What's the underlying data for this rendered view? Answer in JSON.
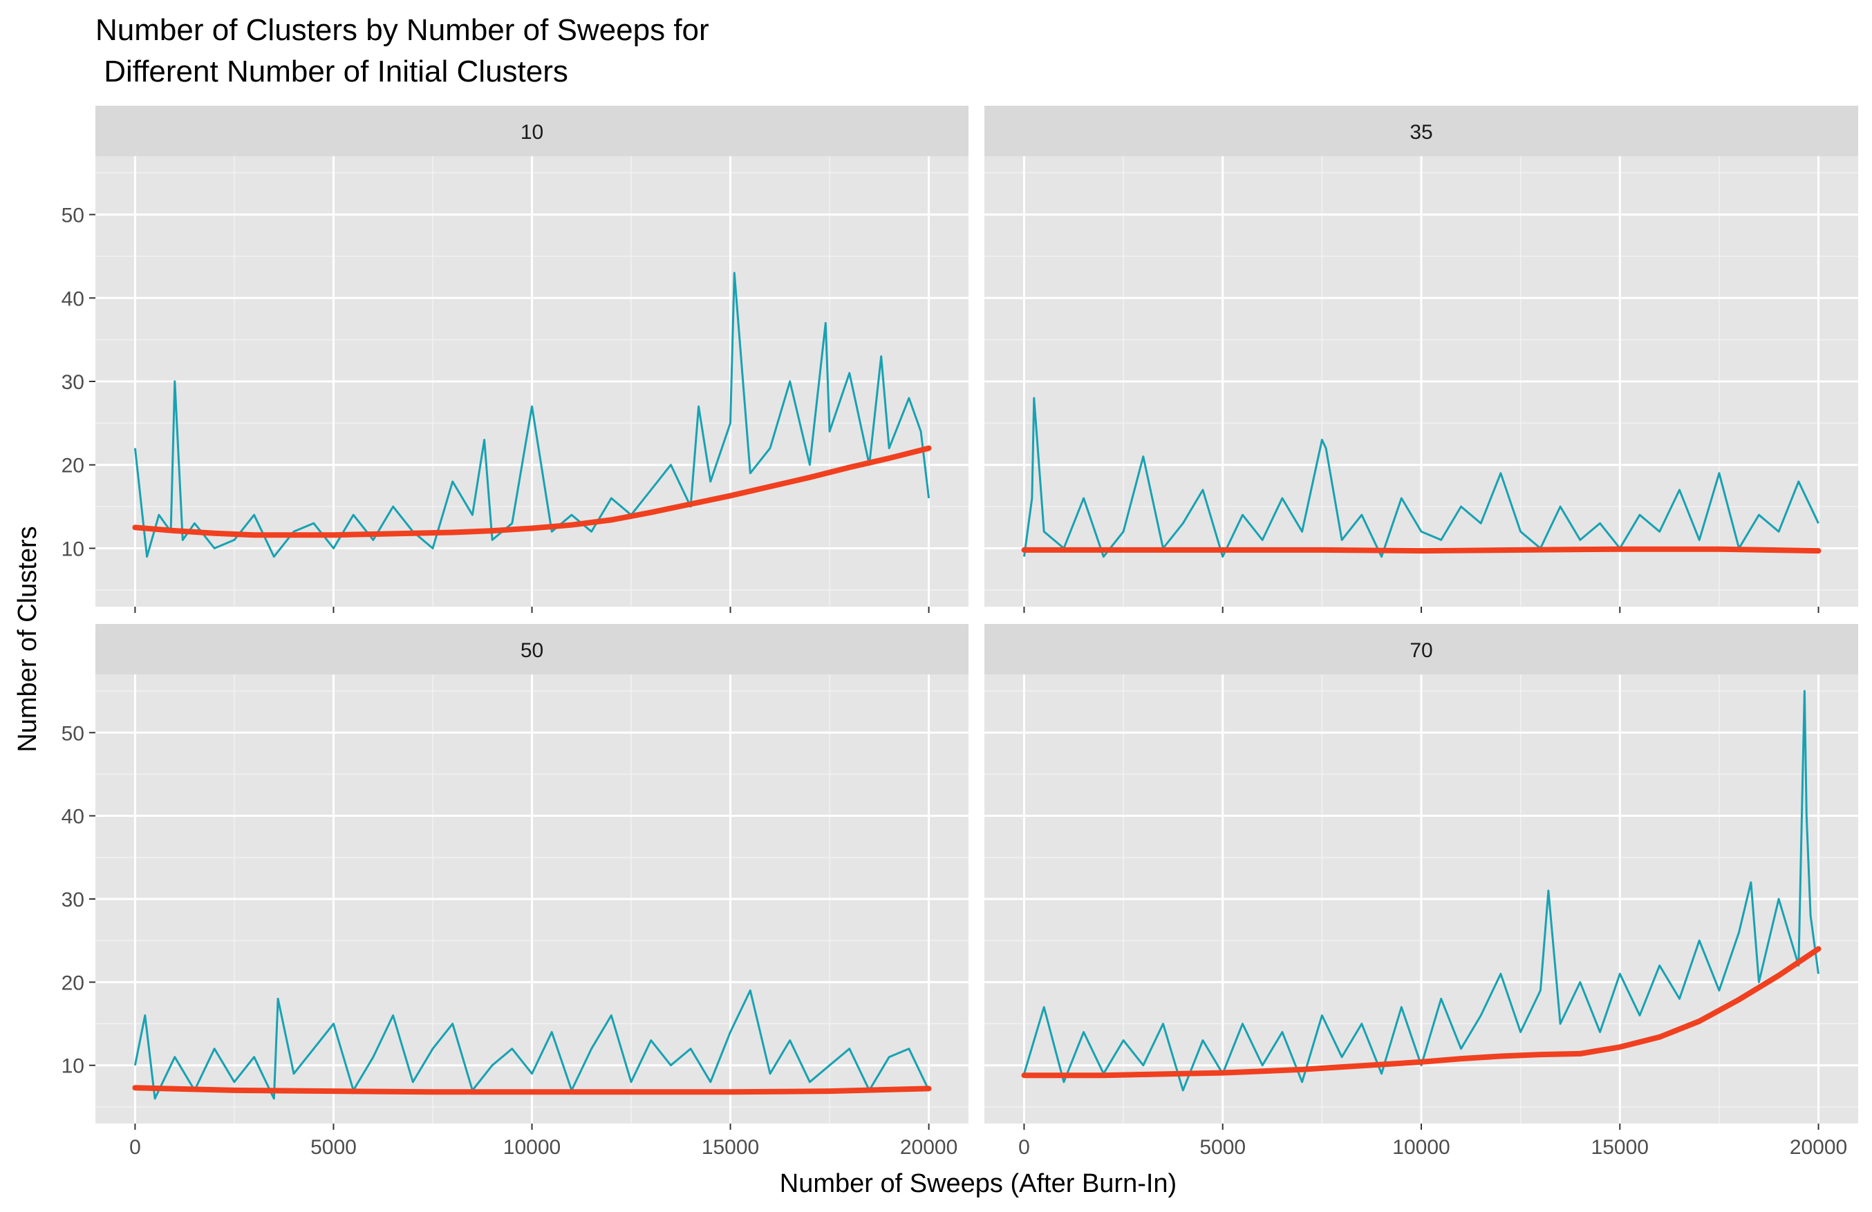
{
  "chart_data": {
    "type": "line",
    "title_line1": "Number of Clusters by Number of Sweeps for",
    "title_line2": " Different Number of Initial Clusters",
    "xlabel": "Number of Sweeps (After Burn-In)",
    "ylabel": "Number of Clusters",
    "xlim": [
      -1000,
      21000
    ],
    "ylim": [
      3,
      57
    ],
    "x_ticks": [
      "0",
      "5000",
      "10000",
      "15000",
      "20000"
    ],
    "y_ticks": [
      "10",
      "20",
      "30",
      "40",
      "50"
    ],
    "grid": true,
    "colors": {
      "trace": "#17a2b2",
      "smooth": "#f0401f",
      "panel_bg": "#e5e5e5",
      "strip_bg": "#d9d9d9",
      "grid": "#ffffff"
    },
    "panels": [
      {
        "strip_label": "10",
        "trace": {
          "x": [
            0,
            300,
            600,
            900,
            1000,
            1200,
            1500,
            2000,
            2500,
            3000,
            3500,
            4000,
            4500,
            5000,
            5500,
            6000,
            6500,
            7000,
            7500,
            8000,
            8500,
            8800,
            9000,
            9500,
            10000,
            10500,
            11000,
            11500,
            12000,
            12500,
            13000,
            13500,
            14000,
            14200,
            14500,
            15000,
            15100,
            15500,
            16000,
            16500,
            17000,
            17400,
            17500,
            18000,
            18500,
            18800,
            19000,
            19500,
            19800,
            20000
          ],
          "y": [
            22,
            9,
            14,
            12,
            30,
            11,
            13,
            10,
            11,
            14,
            9,
            12,
            13,
            10,
            14,
            11,
            15,
            12,
            10,
            18,
            14,
            23,
            11,
            13,
            27,
            12,
            14,
            12,
            16,
            14,
            17,
            20,
            15,
            27,
            18,
            25,
            43,
            19,
            22,
            30,
            20,
            37,
            24,
            31,
            20,
            33,
            22,
            28,
            24,
            16
          ]
        },
        "smooth": {
          "x": [
            0,
            1000,
            2000,
            3000,
            4000,
            5000,
            6000,
            7000,
            8000,
            9000,
            10000,
            11000,
            12000,
            13000,
            14000,
            15000,
            16000,
            17000,
            18000,
            19000,
            20000
          ],
          "y": [
            12.5,
            12.1,
            11.8,
            11.6,
            11.6,
            11.6,
            11.7,
            11.8,
            11.9,
            12.1,
            12.4,
            12.8,
            13.4,
            14.3,
            15.3,
            16.3,
            17.4,
            18.5,
            19.7,
            20.8,
            22.0
          ]
        }
      },
      {
        "strip_label": "35",
        "trace": {
          "x": [
            0,
            200,
            250,
            500,
            1000,
            1500,
            2000,
            2500,
            3000,
            3500,
            4000,
            4500,
            5000,
            5500,
            6000,
            6500,
            7000,
            7500,
            7600,
            8000,
            8500,
            9000,
            9500,
            10000,
            10500,
            11000,
            11500,
            12000,
            12500,
            13000,
            13500,
            14000,
            14500,
            15000,
            15500,
            16000,
            16500,
            17000,
            17500,
            18000,
            18500,
            19000,
            19500,
            20000
          ],
          "y": [
            9,
            16,
            28,
            12,
            10,
            16,
            9,
            12,
            21,
            10,
            13,
            17,
            9,
            14,
            11,
            16,
            12,
            23,
            22,
            11,
            14,
            9,
            16,
            12,
            11,
            15,
            13,
            19,
            12,
            10,
            15,
            11,
            13,
            10,
            14,
            12,
            17,
            11,
            19,
            10,
            14,
            12,
            18,
            13
          ]
        },
        "smooth": {
          "x": [
            0,
            2500,
            5000,
            7500,
            10000,
            12500,
            15000,
            17500,
            20000
          ],
          "y": [
            9.8,
            9.8,
            9.8,
            9.8,
            9.7,
            9.8,
            9.9,
            9.9,
            9.7
          ]
        }
      },
      {
        "strip_label": "50",
        "trace": {
          "x": [
            0,
            250,
            500,
            1000,
            1500,
            2000,
            2500,
            3000,
            3500,
            3600,
            4000,
            4500,
            5000,
            5500,
            6000,
            6500,
            7000,
            7500,
            8000,
            8500,
            9000,
            9500,
            10000,
            10500,
            11000,
            11500,
            12000,
            12500,
            13000,
            13500,
            14000,
            14500,
            15000,
            15500,
            16000,
            16500,
            17000,
            17500,
            18000,
            18500,
            19000,
            19500,
            20000
          ],
          "y": [
            10,
            16,
            6,
            11,
            7,
            12,
            8,
            11,
            6,
            18,
            9,
            12,
            15,
            7,
            11,
            16,
            8,
            12,
            15,
            7,
            10,
            12,
            9,
            14,
            7,
            12,
            16,
            8,
            13,
            10,
            12,
            8,
            14,
            19,
            9,
            13,
            8,
            10,
            12,
            7,
            11,
            12,
            7
          ]
        },
        "smooth": {
          "x": [
            0,
            2500,
            5000,
            7500,
            10000,
            12500,
            15000,
            17500,
            20000
          ],
          "y": [
            7.3,
            7.0,
            6.9,
            6.8,
            6.8,
            6.8,
            6.8,
            6.9,
            7.2
          ]
        }
      },
      {
        "strip_label": "70",
        "trace": {
          "x": [
            0,
            500,
            1000,
            1500,
            2000,
            2500,
            3000,
            3500,
            4000,
            4500,
            5000,
            5500,
            6000,
            6500,
            7000,
            7500,
            8000,
            8500,
            9000,
            9500,
            10000,
            10500,
            11000,
            11500,
            12000,
            12500,
            13000,
            13200,
            13500,
            14000,
            14500,
            15000,
            15500,
            16000,
            16500,
            17000,
            17500,
            18000,
            18300,
            18500,
            19000,
            19500,
            19650,
            19700,
            19800,
            20000
          ],
          "y": [
            9,
            17,
            8,
            14,
            9,
            13,
            10,
            15,
            7,
            13,
            9,
            15,
            10,
            14,
            8,
            16,
            11,
            15,
            9,
            17,
            10,
            18,
            12,
            16,
            21,
            14,
            19,
            31,
            15,
            20,
            14,
            21,
            16,
            22,
            18,
            25,
            19,
            26,
            32,
            20,
            30,
            22,
            55,
            40,
            28,
            21
          ]
        },
        "smooth": {
          "x": [
            0,
            1000,
            2000,
            3000,
            4000,
            5000,
            6000,
            7000,
            8000,
            9000,
            10000,
            11000,
            12000,
            13000,
            14000,
            15000,
            16000,
            17000,
            18000,
            19000,
            20000
          ],
          "y": [
            8.8,
            8.8,
            8.8,
            8.9,
            9.0,
            9.1,
            9.3,
            9.5,
            9.8,
            10.1,
            10.4,
            10.8,
            11.1,
            11.3,
            11.4,
            12.2,
            13.4,
            15.3,
            17.9,
            20.8,
            24.0
          ]
        }
      }
    ]
  }
}
